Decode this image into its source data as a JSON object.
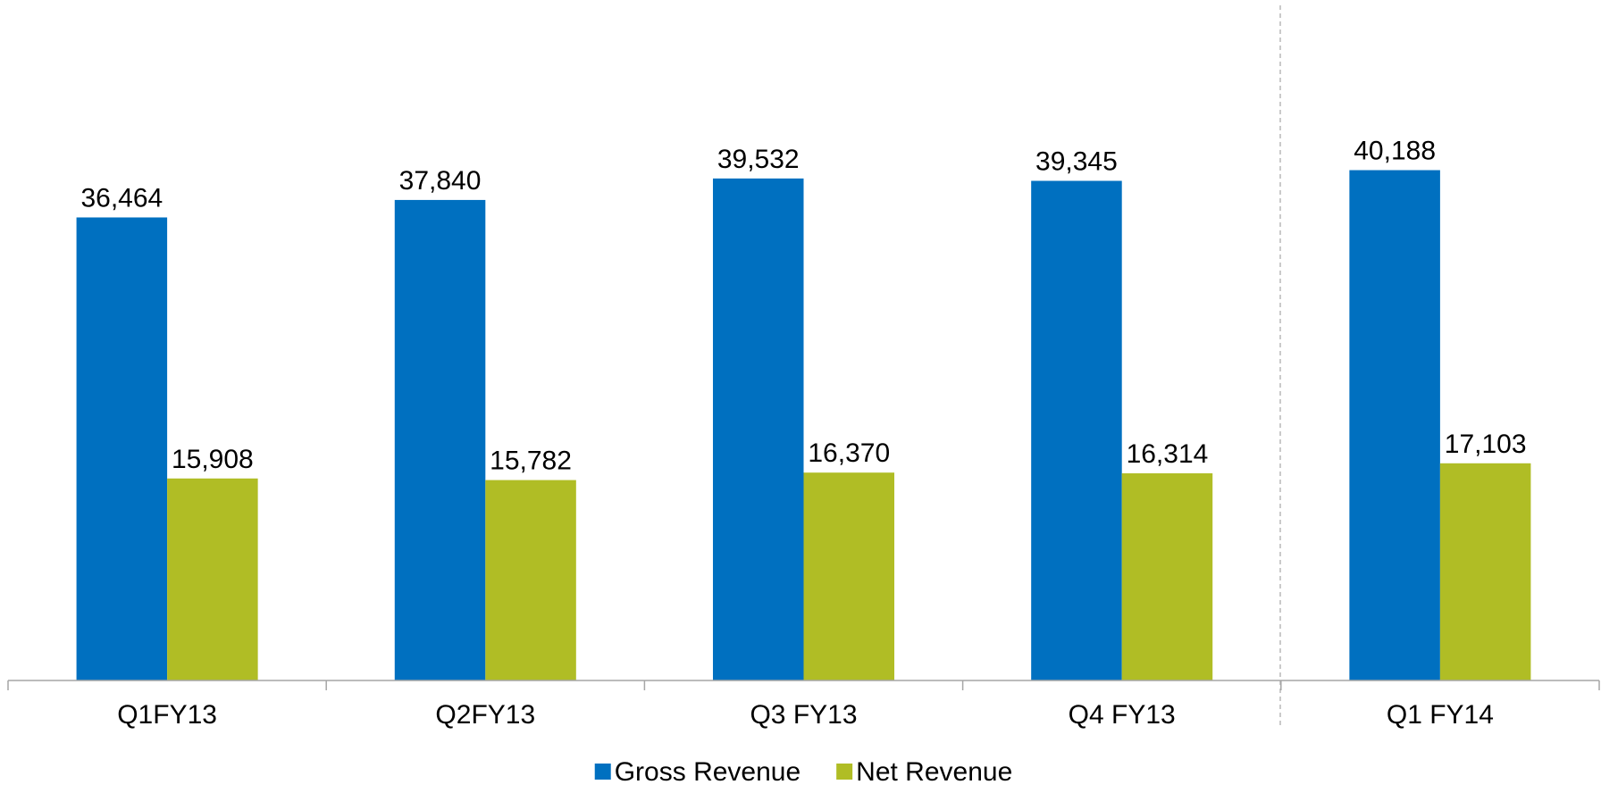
{
  "chart_data": {
    "type": "bar",
    "categories": [
      "Q1FY13",
      "Q2FY13",
      "Q3 FY13",
      "Q4 FY13",
      "Q1 FY14"
    ],
    "series": [
      {
        "name": "Gross Revenue",
        "color": "#0070c0",
        "values": [
          36464,
          37840,
          39532,
          39345,
          40188
        ],
        "value_labels": [
          "36,464",
          "37,840",
          "39,532",
          "39,345",
          "40,188"
        ]
      },
      {
        "name": "Net Revenue",
        "color": "#b0bd25",
        "values": [
          15908,
          15782,
          16370,
          16314,
          17103
        ],
        "value_labels": [
          "15,908",
          "15,782",
          "16,370",
          "16,314",
          "17,103"
        ]
      }
    ],
    "ylim": [
      0,
      50000
    ],
    "legend": "bottom"
  }
}
